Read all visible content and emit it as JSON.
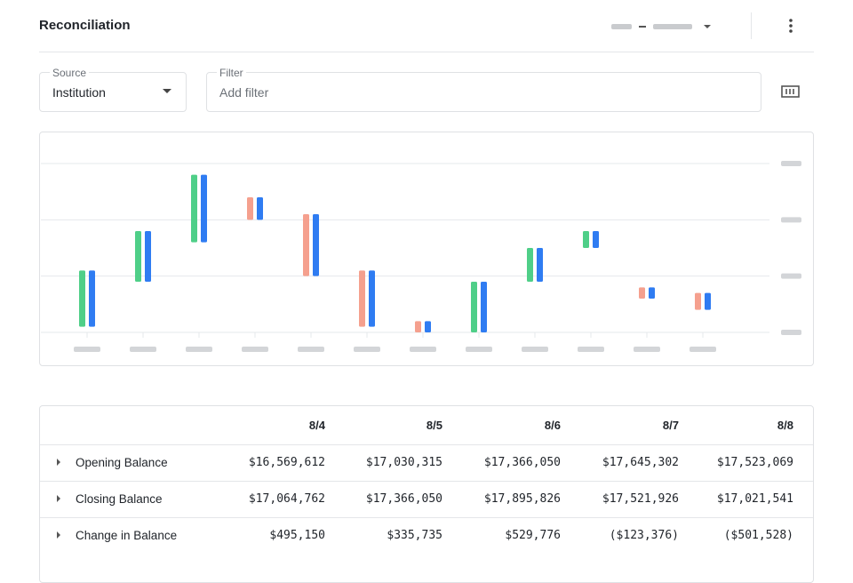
{
  "header": {
    "title": "Reconciliation"
  },
  "filters": {
    "source": {
      "label": "Source",
      "value": "Institution"
    },
    "filter": {
      "label": "Filter",
      "placeholder": "Add filter"
    }
  },
  "chart_data": {
    "type": "floating-bar",
    "ylim": [
      0,
      3
    ],
    "yticks": [
      0,
      1,
      2,
      3
    ],
    "grid": true,
    "paired_color": "#2f7cf2",
    "bars": [
      {
        "low": 0.1,
        "high": 1.1,
        "color": "#4fcf88"
      },
      {
        "low": 0.9,
        "high": 1.8,
        "color": "#4fcf88"
      },
      {
        "low": 1.6,
        "high": 2.8,
        "color": "#4fcf88"
      },
      {
        "low": 2.0,
        "high": 2.4,
        "color": "#f5a08e"
      },
      {
        "low": 1.0,
        "high": 2.1,
        "color": "#f5a08e"
      },
      {
        "low": 0.1,
        "high": 1.1,
        "color": "#f5a08e"
      },
      {
        "low": 0.0,
        "high": 0.2,
        "color": "#f5a08e"
      },
      {
        "low": 0.0,
        "high": 0.9,
        "color": "#4fcf88"
      },
      {
        "low": 0.9,
        "high": 1.5,
        "color": "#4fcf88"
      },
      {
        "low": 1.5,
        "high": 1.8,
        "color": "#4fcf88"
      },
      {
        "low": 0.6,
        "high": 0.8,
        "color": "#f5a08e"
      },
      {
        "low": 0.4,
        "high": 0.7,
        "color": "#f5a08e"
      }
    ]
  },
  "table": {
    "columns": [
      "8/4",
      "8/5",
      "8/6",
      "8/7",
      "8/8"
    ],
    "rows": [
      {
        "label": "Opening Balance",
        "values": [
          "$16,569,612",
          "$17,030,315",
          "$17,366,050",
          "$17,645,302",
          "$17,523,069"
        ]
      },
      {
        "label": "Closing Balance",
        "values": [
          "$17,064,762",
          "$17,366,050",
          "$17,895,826",
          "$17,521,926",
          "$17,021,541"
        ]
      },
      {
        "label": "Change in Balance",
        "values": [
          "$495,150",
          "$335,735",
          "$529,776",
          "($123,376)",
          "($501,528)"
        ]
      }
    ]
  }
}
